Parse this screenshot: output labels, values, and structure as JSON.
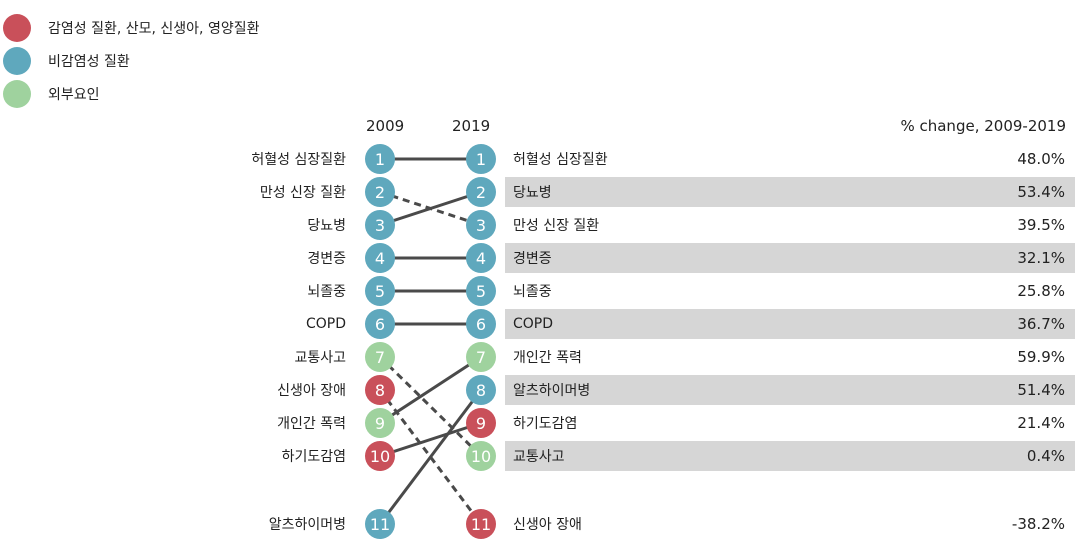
{
  "legend": [
    {
      "label": "감염성 질환, 산모, 신생아, 영양질환",
      "color": "#c9505a"
    },
    {
      "label": "비감염성 질환",
      "color": "#5fa8bd"
    },
    {
      "label": "외부요인",
      "color": "#9fd29e"
    }
  ],
  "headers": {
    "year_start": "2009",
    "year_end": "2019",
    "pct_change": "% change, 2009-2019"
  },
  "chart_data": {
    "type": "slope",
    "title": "",
    "colors": {
      "communicable": "#c9505a",
      "ncd": "#5fa8bd",
      "injury": "#9fd29e",
      "line": "#4a4a4a"
    },
    "causes_2009": [
      {
        "rank": 1,
        "name": "허혈성 심장질환",
        "group": "ncd"
      },
      {
        "rank": 2,
        "name": "만성 신장 질환",
        "group": "ncd"
      },
      {
        "rank": 3,
        "name": "당뇨병",
        "group": "ncd"
      },
      {
        "rank": 4,
        "name": "경변증",
        "group": "ncd"
      },
      {
        "rank": 5,
        "name": "뇌졸중",
        "group": "ncd"
      },
      {
        "rank": 6,
        "name": "COPD",
        "group": "ncd"
      },
      {
        "rank": 7,
        "name": "교통사고",
        "group": "injury"
      },
      {
        "rank": 8,
        "name": "신생아 장애",
        "group": "communicable"
      },
      {
        "rank": 9,
        "name": "개인간 폭력",
        "group": "injury"
      },
      {
        "rank": 10,
        "name": "하기도감염",
        "group": "communicable"
      },
      {
        "rank": 11,
        "name": "알츠하이머병",
        "group": "ncd"
      }
    ],
    "causes_2019": [
      {
        "rank": 1,
        "name": "허혈성 심장질환",
        "group": "ncd",
        "pct": "48.0%"
      },
      {
        "rank": 2,
        "name": "당뇨병",
        "group": "ncd",
        "pct": "53.4%"
      },
      {
        "rank": 3,
        "name": "만성 신장 질환",
        "group": "ncd",
        "pct": "39.5%"
      },
      {
        "rank": 4,
        "name": "경변증",
        "group": "ncd",
        "pct": "32.1%"
      },
      {
        "rank": 5,
        "name": "뇌졸중",
        "group": "ncd",
        "pct": "25.8%"
      },
      {
        "rank": 6,
        "name": "COPD",
        "group": "ncd",
        "pct": "36.7%"
      },
      {
        "rank": 7,
        "name": "개인간 폭력",
        "group": "injury",
        "pct": "59.9%"
      },
      {
        "rank": 8,
        "name": "알츠하이머병",
        "group": "ncd",
        "pct": "51.4%"
      },
      {
        "rank": 9,
        "name": "하기도감염",
        "group": "communicable",
        "pct": "21.4%"
      },
      {
        "rank": 10,
        "name": "교통사고",
        "group": "injury",
        "pct": "0.4%"
      },
      {
        "rank": 11,
        "name": "신생아 장애",
        "group": "communicable",
        "pct": "-38.2%"
      }
    ],
    "links": [
      {
        "from": 1,
        "to": 1,
        "style": "solid"
      },
      {
        "from": 2,
        "to": 3,
        "style": "dashed"
      },
      {
        "from": 3,
        "to": 2,
        "style": "solid"
      },
      {
        "from": 4,
        "to": 4,
        "style": "solid"
      },
      {
        "from": 5,
        "to": 5,
        "style": "solid"
      },
      {
        "from": 6,
        "to": 6,
        "style": "solid"
      },
      {
        "from": 7,
        "to": 10,
        "style": "dashed"
      },
      {
        "from": 8,
        "to": 11,
        "style": "dashed"
      },
      {
        "from": 9,
        "to": 7,
        "style": "solid"
      },
      {
        "from": 10,
        "to": 9,
        "style": "solid"
      },
      {
        "from": 11,
        "to": 8,
        "style": "solid"
      }
    ],
    "shaded_rows_2019": [
      2,
      4,
      6,
      8,
      10
    ]
  }
}
